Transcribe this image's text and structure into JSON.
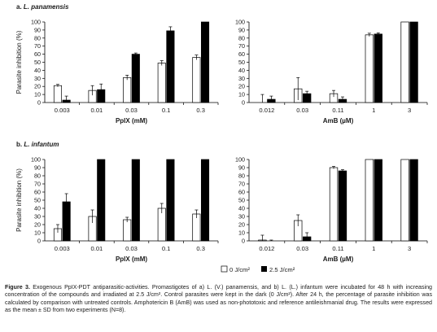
{
  "panels": [
    {
      "letter": "a.",
      "species": "L. panamensis"
    },
    {
      "letter": "b.",
      "species": "L. infantum"
    }
  ],
  "legend": [
    {
      "label": "0 J/cm²",
      "color": "#ffffff"
    },
    {
      "label": "2.5 J/cm²",
      "color": "#000000"
    }
  ],
  "caption": {
    "lead": "Figure 3.",
    "text": "Exogenous PpIX-PDT antiparasitic-activities. Promastigotes of a) L. (V.) panamensis, and b) L. (L.) infantum were incubated for 48 h with increasing concentration of the compounds and irradiated at 2.5 J/cm². Control parasites were kept in the dark (0 J/cm²). After 24 h, the percentage of parasite inhibition was calculated by comparison with untreated controls. Amphotericin B (AmB) was used as non-phototoxic and reference antileishmanial drug. The results were expressed as the mean ± SD from two experiments (N=8)."
  },
  "chart_data": [
    {
      "type": "bar",
      "panel": "a",
      "drug": "PpIX",
      "xlabel": "PpIX (mM)",
      "ylabel": "Parasite inhibition (%)",
      "ylim": [
        0,
        100
      ],
      "yticks": [
        0,
        10,
        20,
        30,
        40,
        50,
        60,
        70,
        80,
        90,
        100
      ],
      "categories": [
        "0.003",
        "0.01",
        "0.03",
        "0.1",
        "0.3"
      ],
      "series": [
        {
          "name": "0 J/cm²",
          "values": [
            21,
            15,
            31,
            49,
            56
          ],
          "sd": [
            1.5,
            6,
            3,
            3,
            3
          ]
        },
        {
          "name": "2.5 J/cm²",
          "values": [
            3,
            16,
            60,
            89,
            100
          ],
          "sd": [
            5,
            7,
            1.5,
            5,
            0
          ]
        }
      ]
    },
    {
      "type": "bar",
      "panel": "a",
      "drug": "AmB",
      "xlabel": "AmB (µM)",
      "ylabel": "",
      "ylim": [
        0,
        100
      ],
      "yticks": [
        0,
        10,
        20,
        30,
        40,
        50,
        60,
        70,
        80,
        90,
        100
      ],
      "categories": [
        "0.012",
        "0.03",
        "0.11",
        "1",
        "3"
      ],
      "series": [
        {
          "name": "0 J/cm²",
          "values": [
            0,
            17,
            11,
            84,
            100
          ],
          "sd": [
            10,
            14,
            4,
            2,
            0
          ]
        },
        {
          "name": "2.5 J/cm²",
          "values": [
            4,
            11,
            4,
            85,
            100
          ],
          "sd": [
            4,
            3,
            3,
            1.5,
            0
          ]
        }
      ]
    },
    {
      "type": "bar",
      "panel": "b",
      "drug": "PpIX",
      "xlabel": "PpIX (mM)",
      "ylabel": "Parasite inhibition (%)",
      "ylim": [
        0,
        100
      ],
      "yticks": [
        0,
        10,
        20,
        30,
        40,
        50,
        60,
        70,
        80,
        90,
        100
      ],
      "categories": [
        "0.003",
        "0.01",
        "0.03",
        "0.1",
        "0.3"
      ],
      "series": [
        {
          "name": "0 J/cm²",
          "values": [
            15,
            30,
            26,
            40,
            33
          ],
          "sd": [
            5,
            8,
            3,
            6,
            5
          ]
        },
        {
          "name": "2.5 J/cm²",
          "values": [
            48,
            100,
            100,
            100,
            100
          ],
          "sd": [
            10,
            0,
            0,
            0,
            0
          ]
        }
      ]
    },
    {
      "type": "bar",
      "panel": "b",
      "drug": "AmB",
      "xlabel": "AmB (µM)",
      "ylabel": "",
      "ylim": [
        0,
        100
      ],
      "yticks": [
        0,
        10,
        20,
        30,
        40,
        50,
        60,
        70,
        80,
        90,
        100
      ],
      "categories": [
        "0.012",
        "0.03",
        "0.11",
        "1",
        "3"
      ],
      "series": [
        {
          "name": "0 J/cm²",
          "values": [
            1,
            25,
            90,
            100,
            100
          ],
          "sd": [
            6,
            7,
            1.5,
            0,
            0
          ]
        },
        {
          "name": "2.5 J/cm²",
          "values": [
            0,
            5,
            86,
            100,
            100
          ],
          "sd": [
            1,
            5,
            1.5,
            0,
            0
          ]
        }
      ]
    }
  ]
}
